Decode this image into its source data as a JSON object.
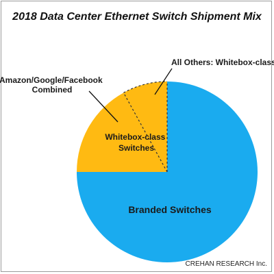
{
  "chart_data": {
    "type": "pie",
    "title": "2018 Data Center Ethernet Switch Shipment Mix",
    "slices": [
      {
        "label": "Branded Switches",
        "value": 75,
        "color": "#1aabef"
      },
      {
        "label": "Amazon/Google/Facebook Combined",
        "value": 17,
        "color": "#ffba12"
      },
      {
        "label": "All Others: Whitebox-class",
        "value": 8,
        "color": "#ffba12"
      }
    ],
    "group_label": "Whitebox-class Switches",
    "group_label_lines": [
      "Whitebox-class",
      "Switches"
    ],
    "annotation_labels": {
      "amazon": [
        "Amazon/Google/Facebook",
        "Combined"
      ],
      "others": "All Others: Whitebox-class"
    },
    "source": "CREHAN RESEARCH Inc."
  }
}
